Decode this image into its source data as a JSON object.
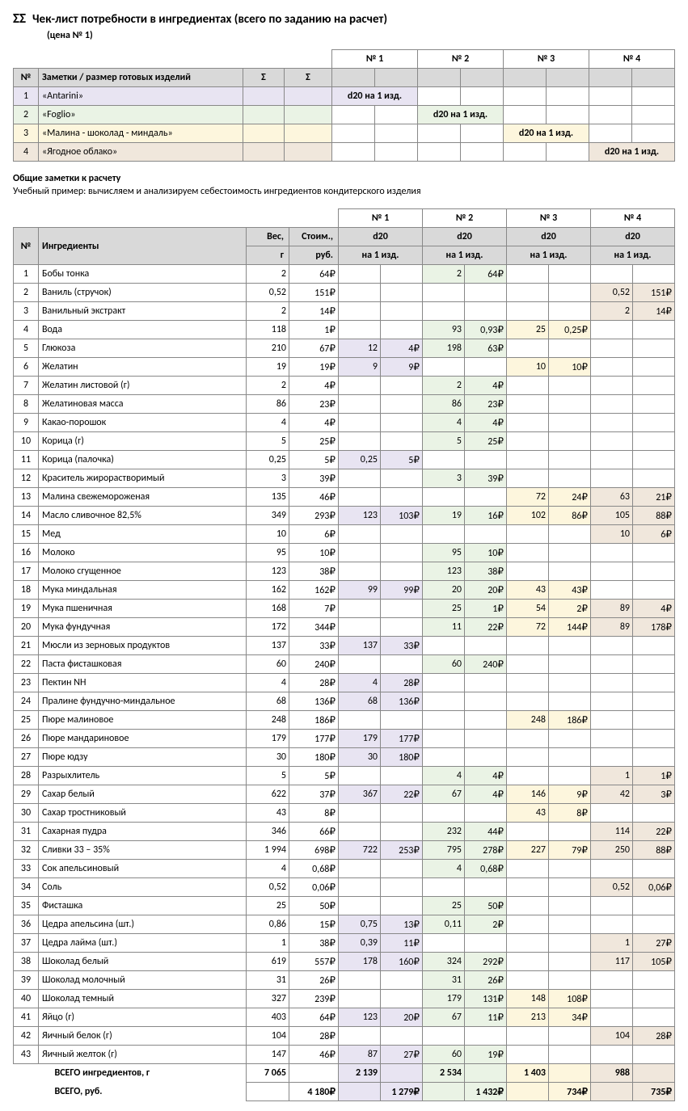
{
  "title_sigma": "ΣΣ",
  "title": "Чек-лист потребности в ингредиентах (всего по заданию на расчет)",
  "subtitle": "(цена № 1)",
  "top_headers": {
    "no": "№",
    "notes": "Заметки / размер готовых изделий",
    "sig": "Σ",
    "c1": "№ 1",
    "c2": "№ 2",
    "c3": "№ 3",
    "c4": "№ 4"
  },
  "top_rows": [
    {
      "n": "1",
      "name": "«Antarini»",
      "d": "d20 на 1 изд.",
      "col": 1
    },
    {
      "n": "2",
      "name": "«Foglio»",
      "d": "d20 на 1 изд.",
      "col": 2
    },
    {
      "n": "3",
      "name": "«Малина - шоколад - миндаль»",
      "d": "d20 на 1 изд.",
      "col": 3
    },
    {
      "n": "4",
      "name": "«Ягодное облако»",
      "d": "d20 на 1 изд.",
      "col": 4
    }
  ],
  "notes_hdr": "Общие заметки к расчету",
  "notes_txt": "Учебный пример: вычисляем и анализируем себестоимость ингредиентов кондитерского изделия",
  "main_headers": {
    "no": "№",
    "ing": "Ингредиенты",
    "w": "Вес,",
    "w2": "г",
    "c": "Стоим.,",
    "c2": "руб.",
    "d": "d20",
    "per": "на 1 изд."
  },
  "rows": [
    {
      "n": "1",
      "name": "Бобы тонка",
      "w": "2",
      "c": "64₽",
      "v2w": "2",
      "v2c": "64₽"
    },
    {
      "n": "2",
      "name": "Ваниль (стручок)",
      "w": "0,52",
      "c": "151₽",
      "v4w": "0,52",
      "v4c": "151₽"
    },
    {
      "n": "3",
      "name": "Ванильный экстракт",
      "w": "2",
      "c": "14₽",
      "v4w": "2",
      "v4c": "14₽"
    },
    {
      "n": "4",
      "name": "Вода",
      "w": "118",
      "c": "1₽",
      "v2w": "93",
      "v2c": "0,93₽",
      "v3w": "25",
      "v3c": "0,25₽"
    },
    {
      "n": "5",
      "name": "Глюкоза",
      "w": "210",
      "c": "67₽",
      "v1w": "12",
      "v1c": "4₽",
      "v2w": "198",
      "v2c": "63₽"
    },
    {
      "n": "6",
      "name": "Желатин",
      "w": "19",
      "c": "19₽",
      "v1w": "9",
      "v1c": "9₽",
      "v3w": "10",
      "v3c": "10₽"
    },
    {
      "n": "7",
      "name": "Желатин листовой (г)",
      "w": "2",
      "c": "4₽",
      "v2w": "2",
      "v2c": "4₽"
    },
    {
      "n": "8",
      "name": "Желатиновая масса",
      "w": "86",
      "c": "23₽",
      "v2w": "86",
      "v2c": "23₽"
    },
    {
      "n": "9",
      "name": "Какао-порошок",
      "w": "4",
      "c": "4₽",
      "v2w": "4",
      "v2c": "4₽"
    },
    {
      "n": "10",
      "name": "Корица (г)",
      "w": "5",
      "c": "25₽",
      "v2w": "5",
      "v2c": "25₽"
    },
    {
      "n": "11",
      "name": "Корица (палочка)",
      "w": "0,25",
      "c": "5₽",
      "v1w": "0,25",
      "v1c": "5₽"
    },
    {
      "n": "12",
      "name": "Краситель жирорастворимый",
      "w": "3",
      "c": "39₽",
      "v2w": "3",
      "v2c": "39₽"
    },
    {
      "n": "13",
      "name": "Малина свежемороженая",
      "w": "135",
      "c": "46₽",
      "v3w": "72",
      "v3c": "24₽",
      "v4w": "63",
      "v4c": "21₽"
    },
    {
      "n": "14",
      "name": "Масло сливочное 82,5%",
      "w": "349",
      "c": "293₽",
      "v1w": "123",
      "v1c": "103₽",
      "v2w": "19",
      "v2c": "16₽",
      "v3w": "102",
      "v3c": "86₽",
      "v4w": "105",
      "v4c": "88₽"
    },
    {
      "n": "15",
      "name": "Мед",
      "w": "10",
      "c": "6₽",
      "v4w": "10",
      "v4c": "6₽"
    },
    {
      "n": "16",
      "name": "Молоко",
      "w": "95",
      "c": "10₽",
      "v2w": "95",
      "v2c": "10₽"
    },
    {
      "n": "17",
      "name": "Молоко сгущенное",
      "w": "123",
      "c": "38₽",
      "v2w": "123",
      "v2c": "38₽"
    },
    {
      "n": "18",
      "name": "Мука миндальная",
      "w": "162",
      "c": "162₽",
      "v1w": "99",
      "v1c": "99₽",
      "v2w": "20",
      "v2c": "20₽",
      "v3w": "43",
      "v3c": "43₽"
    },
    {
      "n": "19",
      "name": "Мука пшеничная",
      "w": "168",
      "c": "7₽",
      "v2w": "25",
      "v2c": "1₽",
      "v3w": "54",
      "v3c": "2₽",
      "v4w": "89",
      "v4c": "4₽"
    },
    {
      "n": "20",
      "name": "Мука фундучная",
      "w": "172",
      "c": "344₽",
      "v2w": "11",
      "v2c": "22₽",
      "v3w": "72",
      "v3c": "144₽",
      "v4w": "89",
      "v4c": "178₽"
    },
    {
      "n": "21",
      "name": "Мюсли из зерновых продуктов",
      "w": "137",
      "c": "33₽",
      "v1w": "137",
      "v1c": "33₽"
    },
    {
      "n": "22",
      "name": "Паста фисташковая",
      "w": "60",
      "c": "240₽",
      "v2w": "60",
      "v2c": "240₽"
    },
    {
      "n": "23",
      "name": "Пектин NH",
      "w": "4",
      "c": "28₽",
      "v1w": "4",
      "v1c": "28₽"
    },
    {
      "n": "24",
      "name": "Пралине фундучно-миндальное",
      "w": "68",
      "c": "136₽",
      "v1w": "68",
      "v1c": "136₽"
    },
    {
      "n": "25",
      "name": "Пюре малиновое",
      "w": "248",
      "c": "186₽",
      "v3w": "248",
      "v3c": "186₽"
    },
    {
      "n": "26",
      "name": "Пюре мандариновое",
      "w": "179",
      "c": "177₽",
      "v1w": "179",
      "v1c": "177₽"
    },
    {
      "n": "27",
      "name": "Пюре юдзу",
      "w": "30",
      "c": "180₽",
      "v1w": "30",
      "v1c": "180₽"
    },
    {
      "n": "28",
      "name": "Разрыхлитель",
      "w": "5",
      "c": "5₽",
      "v2w": "4",
      "v2c": "4₽",
      "v4w": "1",
      "v4c": "1₽"
    },
    {
      "n": "29",
      "name": "Сахар белый",
      "w": "622",
      "c": "37₽",
      "v1w": "367",
      "v1c": "22₽",
      "v2w": "67",
      "v2c": "4₽",
      "v3w": "146",
      "v3c": "9₽",
      "v4w": "42",
      "v4c": "3₽"
    },
    {
      "n": "30",
      "name": "Сахар тростниковый",
      "w": "43",
      "c": "8₽",
      "v3w": "43",
      "v3c": "8₽"
    },
    {
      "n": "31",
      "name": "Сахарная пудра",
      "w": "346",
      "c": "66₽",
      "v2w": "232",
      "v2c": "44₽",
      "v4w": "114",
      "v4c": "22₽"
    },
    {
      "n": "32",
      "name": "Сливки 33 – 35%",
      "w": "1 994",
      "c": "698₽",
      "v1w": "722",
      "v1c": "253₽",
      "v2w": "795",
      "v2c": "278₽",
      "v3w": "227",
      "v3c": "79₽",
      "v4w": "250",
      "v4c": "88₽"
    },
    {
      "n": "33",
      "name": "Сок апельсиновый",
      "w": "4",
      "c": "0,68₽",
      "v2w": "4",
      "v2c": "0,68₽"
    },
    {
      "n": "34",
      "name": "Соль",
      "w": "0,52",
      "c": "0,06₽",
      "v4w": "0,52",
      "v4c": "0,06₽"
    },
    {
      "n": "35",
      "name": "Фисташка",
      "w": "25",
      "c": "50₽",
      "v2w": "25",
      "v2c": "50₽"
    },
    {
      "n": "36",
      "name": "Цедра апельсина (шт.)",
      "w": "0,86",
      "c": "15₽",
      "v1w": "0,75",
      "v1c": "13₽",
      "v2w": "0,11",
      "v2c": "2₽"
    },
    {
      "n": "37",
      "name": "Цедра лайма (шт.)",
      "w": "1",
      "c": "38₽",
      "v1w": "0,39",
      "v1c": "11₽",
      "v4w": "1",
      "v4c": "27₽"
    },
    {
      "n": "38",
      "name": "Шоколад белый",
      "w": "619",
      "c": "557₽",
      "v1w": "178",
      "v1c": "160₽",
      "v2w": "324",
      "v2c": "292₽",
      "v4w": "117",
      "v4c": "105₽"
    },
    {
      "n": "39",
      "name": "Шоколад молочный",
      "w": "31",
      "c": "26₽",
      "v2w": "31",
      "v2c": "26₽"
    },
    {
      "n": "40",
      "name": "Шоколад темный",
      "w": "327",
      "c": "239₽",
      "v2w": "179",
      "v2c": "131₽",
      "v3w": "148",
      "v3c": "108₽"
    },
    {
      "n": "41",
      "name": "Яйцо (г)",
      "w": "403",
      "c": "64₽",
      "v1w": "123",
      "v1c": "20₽",
      "v2w": "67",
      "v2c": "11₽",
      "v3w": "213",
      "v3c": "34₽"
    },
    {
      "n": "42",
      "name": "Яичный белок (г)",
      "w": "104",
      "c": "28₽",
      "v4w": "104",
      "v4c": "28₽"
    },
    {
      "n": "43",
      "name": "Яичный желток (г)",
      "w": "147",
      "c": "46₽",
      "v1w": "87",
      "v1c": "27₽",
      "v2w": "60",
      "v2c": "19₽"
    }
  ],
  "totals": {
    "label_w": "ВСЕГО ингредиентов, г",
    "label_c": "ВСЕГО, руб.",
    "w": "7 065",
    "c": "4 180₽",
    "w1": "2 139",
    "c1": "1 279₽",
    "w2": "2 534",
    "c2": "1 432₽",
    "w3": "1 403",
    "c3": "734₽",
    "w4": "988",
    "c4": "735₽"
  }
}
